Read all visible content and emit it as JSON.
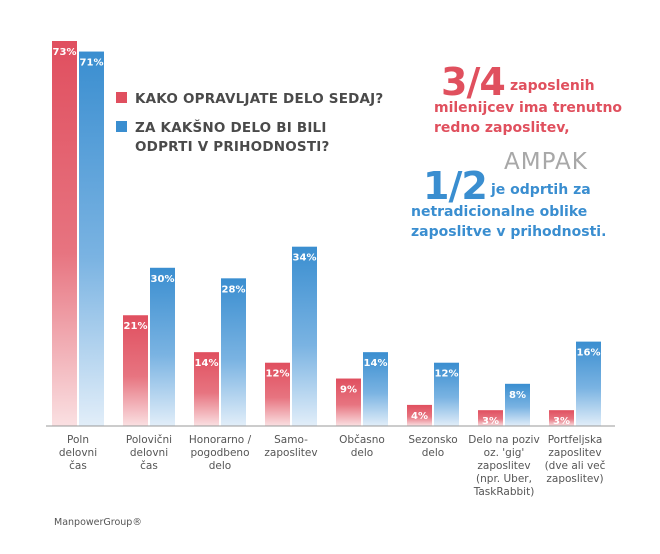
{
  "colors": {
    "red": "#e04f5f",
    "blue": "#3a8ed0",
    "axis": "#888888",
    "label": "#555555"
  },
  "legend": {
    "items": [
      {
        "label": "KAKO OPRAVLJATE DELO SEDAJ?",
        "color": "#e04f5f"
      },
      {
        "label": "ZA KAKŠNO DELO BI BILI ODPRTI V PRIHODNOSTI?",
        "color": "#3a8ed0"
      }
    ]
  },
  "callout": {
    "fraction1": "3/4",
    "text1a": "zaposlenih",
    "text1b": "milenijcev ima trenutno",
    "text1c": "redno zaposlitev,",
    "ampak": "AMPAK",
    "fraction2": "1/2",
    "text2a": "je odprtih za",
    "text2b": "netradicionalne oblike",
    "text2c": "zaposlitve v prihodnosti."
  },
  "footer": "ManpowerGroup®",
  "chart_data": {
    "type": "bar",
    "title": "",
    "xlabel": "",
    "ylabel": "",
    "ylim": [
      0,
      73
    ],
    "categories": [
      [
        "Poln",
        "delovni",
        "čas"
      ],
      [
        "Polovični",
        "delovni",
        "čas"
      ],
      [
        "Honorarno /",
        "pogodbeno",
        "delo"
      ],
      [
        "Samo-",
        "zaposlitev"
      ],
      [
        "Občasno",
        "delo"
      ],
      [
        "Sezonsko",
        "delo"
      ],
      [
        "Delo na poziv",
        "oz. 'gig'",
        "zaposlitev",
        "(npr. Uber,",
        "TaskRabbit)"
      ],
      [
        "Portfeljska",
        "zaposlitev",
        "(dve ali več",
        "zaposlitev)"
      ]
    ],
    "series": [
      {
        "name": "KAKO OPRAVLJATE DELO SEDAJ?",
        "color": "#e04f5f",
        "values": [
          73,
          21,
          14,
          12,
          9,
          4,
          3,
          3
        ],
        "labels": [
          "73%",
          "21%",
          "14%",
          "12%",
          "9%",
          "4%",
          "3%",
          "3%"
        ]
      },
      {
        "name": "ZA KAKŠNO DELO BI BILI ODPRTI V PRIHODNOSTI?",
        "color": "#3a8ed0",
        "values": [
          71,
          30,
          28,
          34,
          14,
          12,
          8,
          16
        ],
        "labels": [
          "71%",
          "30%",
          "28%",
          "34%",
          "14%",
          "12%",
          "8%",
          "16%"
        ]
      }
    ]
  }
}
